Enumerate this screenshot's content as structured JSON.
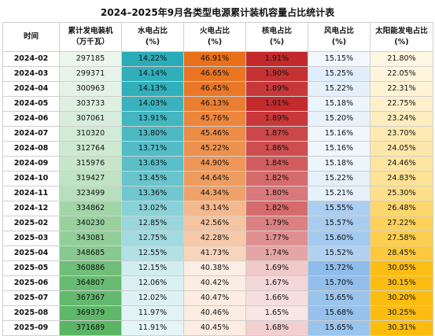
{
  "title": "2024–2025年9月各类型电源累计装机容量占比统计表",
  "chart_data": {
    "type": "table",
    "columns": [
      {
        "key": "time",
        "label": "时间",
        "sub": ""
      },
      {
        "key": "cap",
        "label": "累计发电装机",
        "sub": "（万千瓦）"
      },
      {
        "key": "hydro",
        "label": "水电占比",
        "sub": "(%)"
      },
      {
        "key": "thermal",
        "label": "火电占比",
        "sub": "(%)"
      },
      {
        "key": "nuclear",
        "label": "核电占比",
        "sub": "(%)"
      },
      {
        "key": "wind",
        "label": "风电占比",
        "sub": "(%)"
      },
      {
        "key": "solar",
        "label": "太阳能发电占比",
        "sub": "(%)"
      }
    ],
    "rows": [
      [
        "2024-02",
        "297185",
        "14.22%",
        "46.91%",
        "1.91%",
        "15.15%",
        "21.80%"
      ],
      [
        "2024-03",
        "299371",
        "14.14%",
        "46.65%",
        "1.90%",
        "15.25%",
        "22.05%"
      ],
      [
        "2024-04",
        "300963",
        "14.13%",
        "46.45%",
        "1.89%",
        "15.22%",
        "22.31%"
      ],
      [
        "2024-05",
        "303733",
        "14.03%",
        "46.13%",
        "1.91%",
        "15.18%",
        "22.75%"
      ],
      [
        "2024-06",
        "307061",
        "13.91%",
        "45.76%",
        "1.89%",
        "15.20%",
        "23.24%"
      ],
      [
        "2024-07",
        "310320",
        "13.80%",
        "45.46%",
        "1.87%",
        "15.16%",
        "23.70%"
      ],
      [
        "2024-08",
        "312764",
        "13.71%",
        "45.22%",
        "1.86%",
        "15.16%",
        "24.05%"
      ],
      [
        "2024-09",
        "315976",
        "13.63%",
        "44.90%",
        "1.84%",
        "15.18%",
        "24.46%"
      ],
      [
        "2024-10",
        "319427",
        "13.45%",
        "44.64%",
        "1.82%",
        "15.22%",
        "24.83%"
      ],
      [
        "2024-11",
        "323499",
        "13.36%",
        "44.34%",
        "1.80%",
        "15.21%",
        "25.30%"
      ],
      [
        "2024-12",
        "334862",
        "13.02%",
        "43.14%",
        "1.82%",
        "15.55%",
        "26.48%"
      ],
      [
        "2025-02",
        "340230",
        "12.85%",
        "42.56%",
        "1.79%",
        "15.57%",
        "27.22%"
      ],
      [
        "2025-03",
        "343081",
        "12.75%",
        "42.28%",
        "1.77%",
        "15.60%",
        "27.58%"
      ],
      [
        "2025-04",
        "348685",
        "12.55%",
        "41.73%",
        "1.74%",
        "15.52%",
        "28.45%"
      ],
      [
        "2025-05",
        "360886",
        "12.15%",
        "40.38%",
        "1.69%",
        "15.72%",
        "30.05%"
      ],
      [
        "2025-06",
        "364807",
        "12.06%",
        "40.42%",
        "1.67%",
        "15.70%",
        "30.15%"
      ],
      [
        "2025-07",
        "367367",
        "12.02%",
        "40.47%",
        "1.66%",
        "15.65%",
        "30.20%"
      ],
      [
        "2025-08",
        "369379",
        "11.97%",
        "40.46%",
        "1.65%",
        "15.68%",
        "30.25%"
      ],
      [
        "2025-09",
        "371689",
        "11.91%",
        "40.45%",
        "1.68%",
        "15.65%",
        "30.31%"
      ]
    ],
    "heat_colors": {
      "cap": {
        "low": "#ffffff",
        "high": "#5bb565"
      },
      "hydro": {
        "low": "#ffffff",
        "high": "#2aacb8"
      },
      "thermal": {
        "low": "#ffffff",
        "high": "#e8701a"
      },
      "nuclear": {
        "low": "#ffffff",
        "high": "#c42a2c"
      },
      "wind": {
        "low": "#ffffff",
        "high": "#8fbdeb"
      },
      "solar": {
        "low": "#ffffff",
        "high": "#fcbc0d"
      }
    }
  }
}
